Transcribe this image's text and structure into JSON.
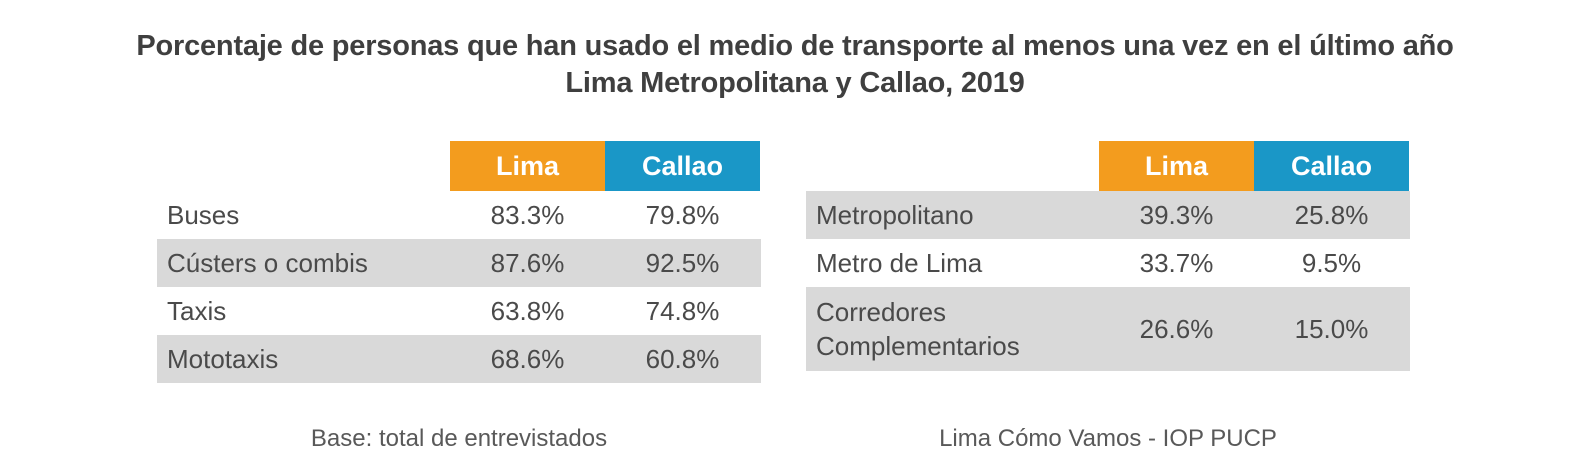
{
  "title": {
    "line1": "Porcentaje de personas que han usado el medio de transporte al menos una vez en el último año",
    "line2": "Lima Metropolitana y Callao, 2019"
  },
  "colors": {
    "lima_header": "#f39c1e",
    "callao_header": "#1a97c7",
    "shade": "#d9d9d9"
  },
  "chart_data": [
    {
      "type": "table",
      "columns": [
        "Lima",
        "Callao"
      ],
      "rows": [
        {
          "label": "Buses",
          "values": [
            "83.3%",
            "79.8%"
          ]
        },
        {
          "label": "Cústers o combis",
          "values": [
            "87.6%",
            "92.5%"
          ]
        },
        {
          "label": "Taxis",
          "values": [
            "63.8%",
            "74.8%"
          ]
        },
        {
          "label": "Mototaxis",
          "values": [
            "68.6%",
            "60.8%"
          ]
        }
      ]
    },
    {
      "type": "table",
      "columns": [
        "Lima",
        "Callao"
      ],
      "rows": [
        {
          "label": "Metropolitano",
          "values": [
            "39.3%",
            "25.8%"
          ]
        },
        {
          "label": "Metro de Lima",
          "values": [
            "33.7%",
            "9.5%"
          ]
        },
        {
          "label": "Corredores Complementarios",
          "label_lines": [
            "Corredores",
            "Complementarios"
          ],
          "values": [
            "26.6%",
            "15.0%"
          ]
        }
      ]
    }
  ],
  "footer": {
    "left": "Base: total de entrevistados",
    "right": "Lima Cómo Vamos - IOP PUCP"
  }
}
